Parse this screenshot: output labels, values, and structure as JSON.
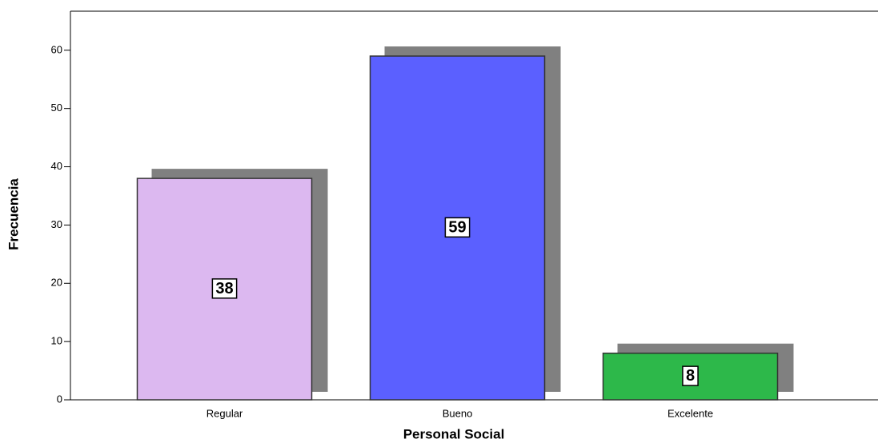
{
  "chart_data": {
    "type": "bar",
    "x_label": "Personal Social",
    "y_label": "Frecuencia",
    "categories": [
      "Regular",
      "Bueno",
      "Excelente"
    ],
    "values": [
      38,
      59,
      8
    ],
    "colors": [
      "#dcb8f0",
      "#5b60ff",
      "#2db84a"
    ],
    "ylim": [
      0,
      66.7
    ],
    "yticks": [
      0,
      10,
      20,
      30,
      40,
      50,
      60
    ],
    "grid": false,
    "shadow": true,
    "data_labels": true
  }
}
